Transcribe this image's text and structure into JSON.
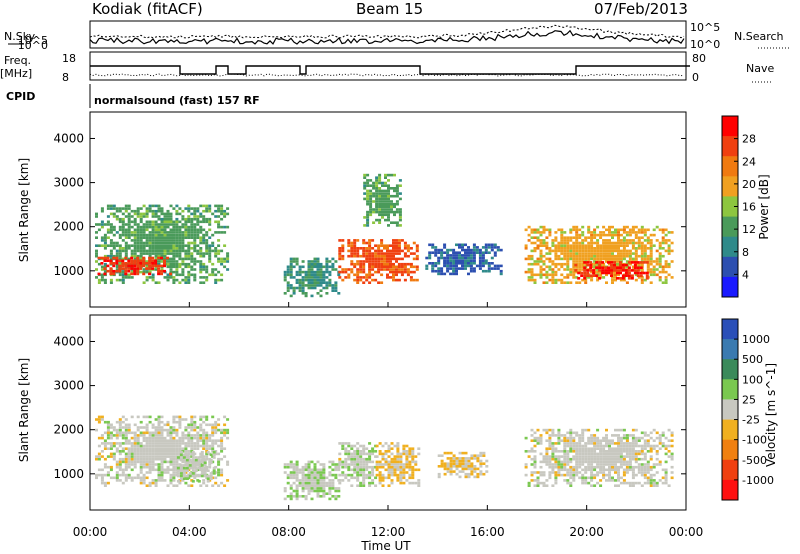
{
  "header": {
    "station": "Kodiak (fitACF)",
    "beam": "Beam 15",
    "date": "07/Feb/2013"
  },
  "status_panels": {
    "nsky_label": "N.Sky",
    "nsearch_label": "N.Search",
    "nsky_ticks": [
      "10^5",
      "10^0"
    ],
    "nsearch_ticks": [
      "10^5",
      "10^0"
    ],
    "freq_label_1": "Freq.",
    "freq_label_2": "[MHz]",
    "freq_ticks": [
      "18",
      "8"
    ],
    "nave_label": "Nave",
    "nave_ticks": [
      "80",
      "0"
    ],
    "cpid_label": "CPID",
    "cpid_text": "normalsound (fast) 157 RF"
  },
  "colors": {
    "power_scale": [
      "#1a1aff",
      "#2c4fb0",
      "#2f8a8a",
      "#4a9a5a",
      "#8dc63f",
      "#f0a020",
      "#f07a10",
      "#f04010",
      "#ff0000"
    ],
    "velocity_scale": [
      "#2a4fb8",
      "#3a7ab0",
      "#3a8a5a",
      "#7ac850",
      "#c8c8c0",
      "#f0b020",
      "#f08010",
      "#f04010",
      "#ff1010"
    ]
  },
  "chart_data": [
    {
      "type": "heatmap",
      "name": "power",
      "title": "",
      "xlabel": "",
      "ylabel": "Slant Range [km]",
      "x_ticks": [
        "00:00",
        "04:00",
        "08:00",
        "12:00",
        "16:00",
        "20:00",
        "00:00"
      ],
      "y_ticks": [
        1000,
        2000,
        3000,
        4000
      ],
      "xlim_hours": [
        0,
        24
      ],
      "ylim_km": [
        180,
        4600
      ],
      "colorbar": {
        "label": "Power [dB]",
        "ticks": [
          "28",
          "24",
          "20",
          "16",
          "12",
          "8",
          "4"
        ],
        "range": [
          0,
          30
        ]
      },
      "regions": [
        {
          "t": [
            0.2,
            5.5
          ],
          "r": [
            700,
            2500
          ],
          "level": 12
        },
        {
          "t": [
            0.3,
            3.2
          ],
          "r": [
            900,
            1300
          ],
          "level": 26
        },
        {
          "t": [
            7.8,
            10.0
          ],
          "r": [
            400,
            1300
          ],
          "level": 10
        },
        {
          "t": [
            10.0,
            13.2
          ],
          "r": [
            700,
            1700
          ],
          "level": 24
        },
        {
          "t": [
            11.0,
            12.5
          ],
          "r": [
            2000,
            3200
          ],
          "level": 12
        },
        {
          "t": [
            13.5,
            16.5
          ],
          "r": [
            900,
            1600
          ],
          "level": 6
        },
        {
          "t": [
            17.5,
            23.5
          ],
          "r": [
            700,
            2000
          ],
          "level": 18
        },
        {
          "t": [
            19.5,
            22.5
          ],
          "r": [
            800,
            1200
          ],
          "level": 27
        }
      ]
    },
    {
      "type": "heatmap",
      "name": "velocity",
      "title": "",
      "xlabel": "Time UT",
      "ylabel": "Slant Range [km]",
      "x_ticks": [
        "00:00",
        "04:00",
        "08:00",
        "12:00",
        "16:00",
        "20:00",
        "00:00"
      ],
      "y_ticks": [
        1000,
        2000,
        3000,
        4000
      ],
      "xlim_hours": [
        0,
        24
      ],
      "ylim_km": [
        180,
        4600
      ],
      "colorbar": {
        "label": "Velocity [m s^-1]",
        "ticks": [
          "1000",
          "500",
          "100",
          "25",
          "-25",
          "-100",
          "-500",
          "-1000"
        ],
        "range": [
          -1000,
          1000
        ]
      },
      "regions": [
        {
          "t": [
            0.2,
            5.5
          ],
          "r": [
            700,
            2300
          ],
          "level": 0
        },
        {
          "t": [
            3.5,
            5.0
          ],
          "r": [
            800,
            1500
          ],
          "level": 60
        },
        {
          "t": [
            7.8,
            10.0
          ],
          "r": [
            400,
            1300
          ],
          "level": 80
        },
        {
          "t": [
            10.0,
            11.5
          ],
          "r": [
            700,
            1700
          ],
          "level": 60
        },
        {
          "t": [
            11.5,
            13.2
          ],
          "r": [
            700,
            1700
          ],
          "level": -120
        },
        {
          "t": [
            14.0,
            16.0
          ],
          "r": [
            900,
            1500
          ],
          "level": -100
        },
        {
          "t": [
            17.5,
            23.5
          ],
          "r": [
            700,
            2000
          ],
          "level": 0
        }
      ]
    }
  ]
}
